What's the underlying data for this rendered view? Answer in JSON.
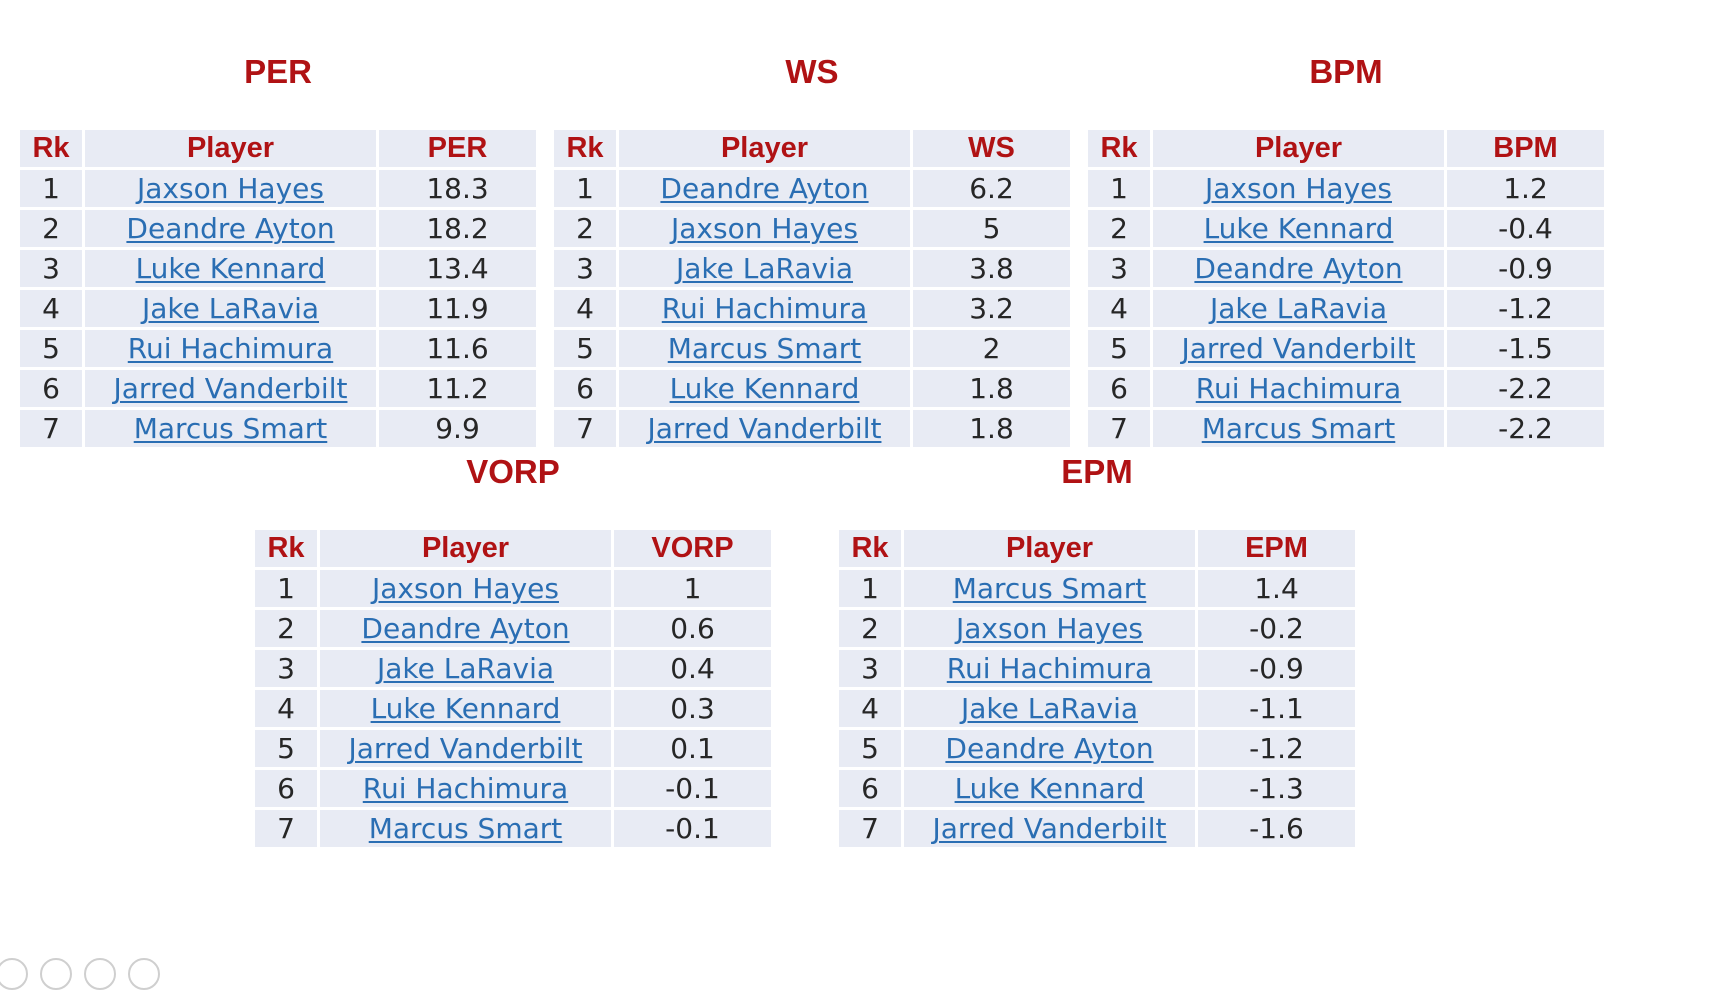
{
  "tables": {
    "per": {
      "title": "PER",
      "headers": [
        "Rk",
        "Player",
        "PER"
      ],
      "rows": [
        [
          "1",
          "Jaxson Hayes",
          "18.3"
        ],
        [
          "2",
          "Deandre Ayton",
          "18.2"
        ],
        [
          "3",
          "Luke Kennard",
          "13.4"
        ],
        [
          "4",
          "Jake LaRavia",
          "11.9"
        ],
        [
          "5",
          "Rui Hachimura",
          "11.6"
        ],
        [
          "6",
          "Jarred Vanderbilt",
          "11.2"
        ],
        [
          "7",
          "Marcus Smart",
          "9.9"
        ]
      ]
    },
    "ws": {
      "title": "WS",
      "headers": [
        "Rk",
        "Player",
        "WS"
      ],
      "rows": [
        [
          "1",
          "Deandre Ayton",
          "6.2"
        ],
        [
          "2",
          "Jaxson Hayes",
          "5"
        ],
        [
          "3",
          "Jake LaRavia",
          "3.8"
        ],
        [
          "4",
          "Rui Hachimura",
          "3.2"
        ],
        [
          "5",
          "Marcus Smart",
          "2"
        ],
        [
          "6",
          "Luke Kennard",
          "1.8"
        ],
        [
          "7",
          "Jarred Vanderbilt",
          "1.8"
        ]
      ]
    },
    "bpm": {
      "title": "BPM",
      "headers": [
        "Rk",
        "Player",
        "BPM"
      ],
      "rows": [
        [
          "1",
          "Jaxson Hayes",
          "1.2"
        ],
        [
          "2",
          "Luke Kennard",
          "-0.4"
        ],
        [
          "3",
          "Deandre Ayton",
          "-0.9"
        ],
        [
          "4",
          "Jake LaRavia",
          "-1.2"
        ],
        [
          "5",
          "Jarred Vanderbilt",
          "-1.5"
        ],
        [
          "6",
          "Rui Hachimura",
          "-2.2"
        ],
        [
          "7",
          "Marcus Smart",
          "-2.2"
        ]
      ]
    },
    "vorp": {
      "title": "VORP",
      "headers": [
        "Rk",
        "Player",
        "VORP"
      ],
      "rows": [
        [
          "1",
          "Jaxson Hayes",
          "1"
        ],
        [
          "2",
          "Deandre Ayton",
          "0.6"
        ],
        [
          "3",
          "Jake LaRavia",
          "0.4"
        ],
        [
          "4",
          "Luke Kennard",
          "0.3"
        ],
        [
          "5",
          "Jarred Vanderbilt",
          "0.1"
        ],
        [
          "6",
          "Rui Hachimura",
          "-0.1"
        ],
        [
          "7",
          "Marcus Smart",
          "-0.1"
        ]
      ]
    },
    "epm": {
      "title": "EPM",
      "headers": [
        "Rk",
        "Player",
        "EPM"
      ],
      "rows": [
        [
          "1",
          "Marcus Smart",
          "1.4"
        ],
        [
          "2",
          "Jaxson Hayes",
          "-0.2"
        ],
        [
          "3",
          "Rui Hachimura",
          "-0.9"
        ],
        [
          "4",
          "Jake LaRavia",
          "-1.1"
        ],
        [
          "5",
          "Deandre Ayton",
          "-1.2"
        ],
        [
          "6",
          "Luke Kennard",
          "-1.3"
        ],
        [
          "7",
          "Jarred Vanderbilt",
          "-1.6"
        ]
      ]
    }
  },
  "colors": {
    "title": "#b01214",
    "header_text": "#b01214",
    "cell_background": "#e8ebf4",
    "link": "#2a6eb3",
    "text": "#262626"
  }
}
